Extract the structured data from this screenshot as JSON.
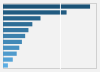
{
  "chart_data": {
    "type": "bar",
    "orientation": "horizontal",
    "categories": [
      null,
      null,
      null,
      null,
      null,
      null,
      null,
      null,
      null,
      null,
      null
    ],
    "values": [
      267,
      195,
      115,
      90,
      78,
      68,
      58,
      50,
      42,
      30,
      15
    ],
    "colors": [
      "#1a5276",
      "#215b81",
      "#27648c",
      "#2e6d96",
      "#3576a1",
      "#3c80ac",
      "#4289b7",
      "#4992c2",
      "#509bcc",
      "#56a4d7",
      "#5dade2"
    ],
    "xlim": [
      0,
      288.36
    ],
    "xticks": [
      176.22
    ],
    "grid": true,
    "tick_labels": false
  }
}
